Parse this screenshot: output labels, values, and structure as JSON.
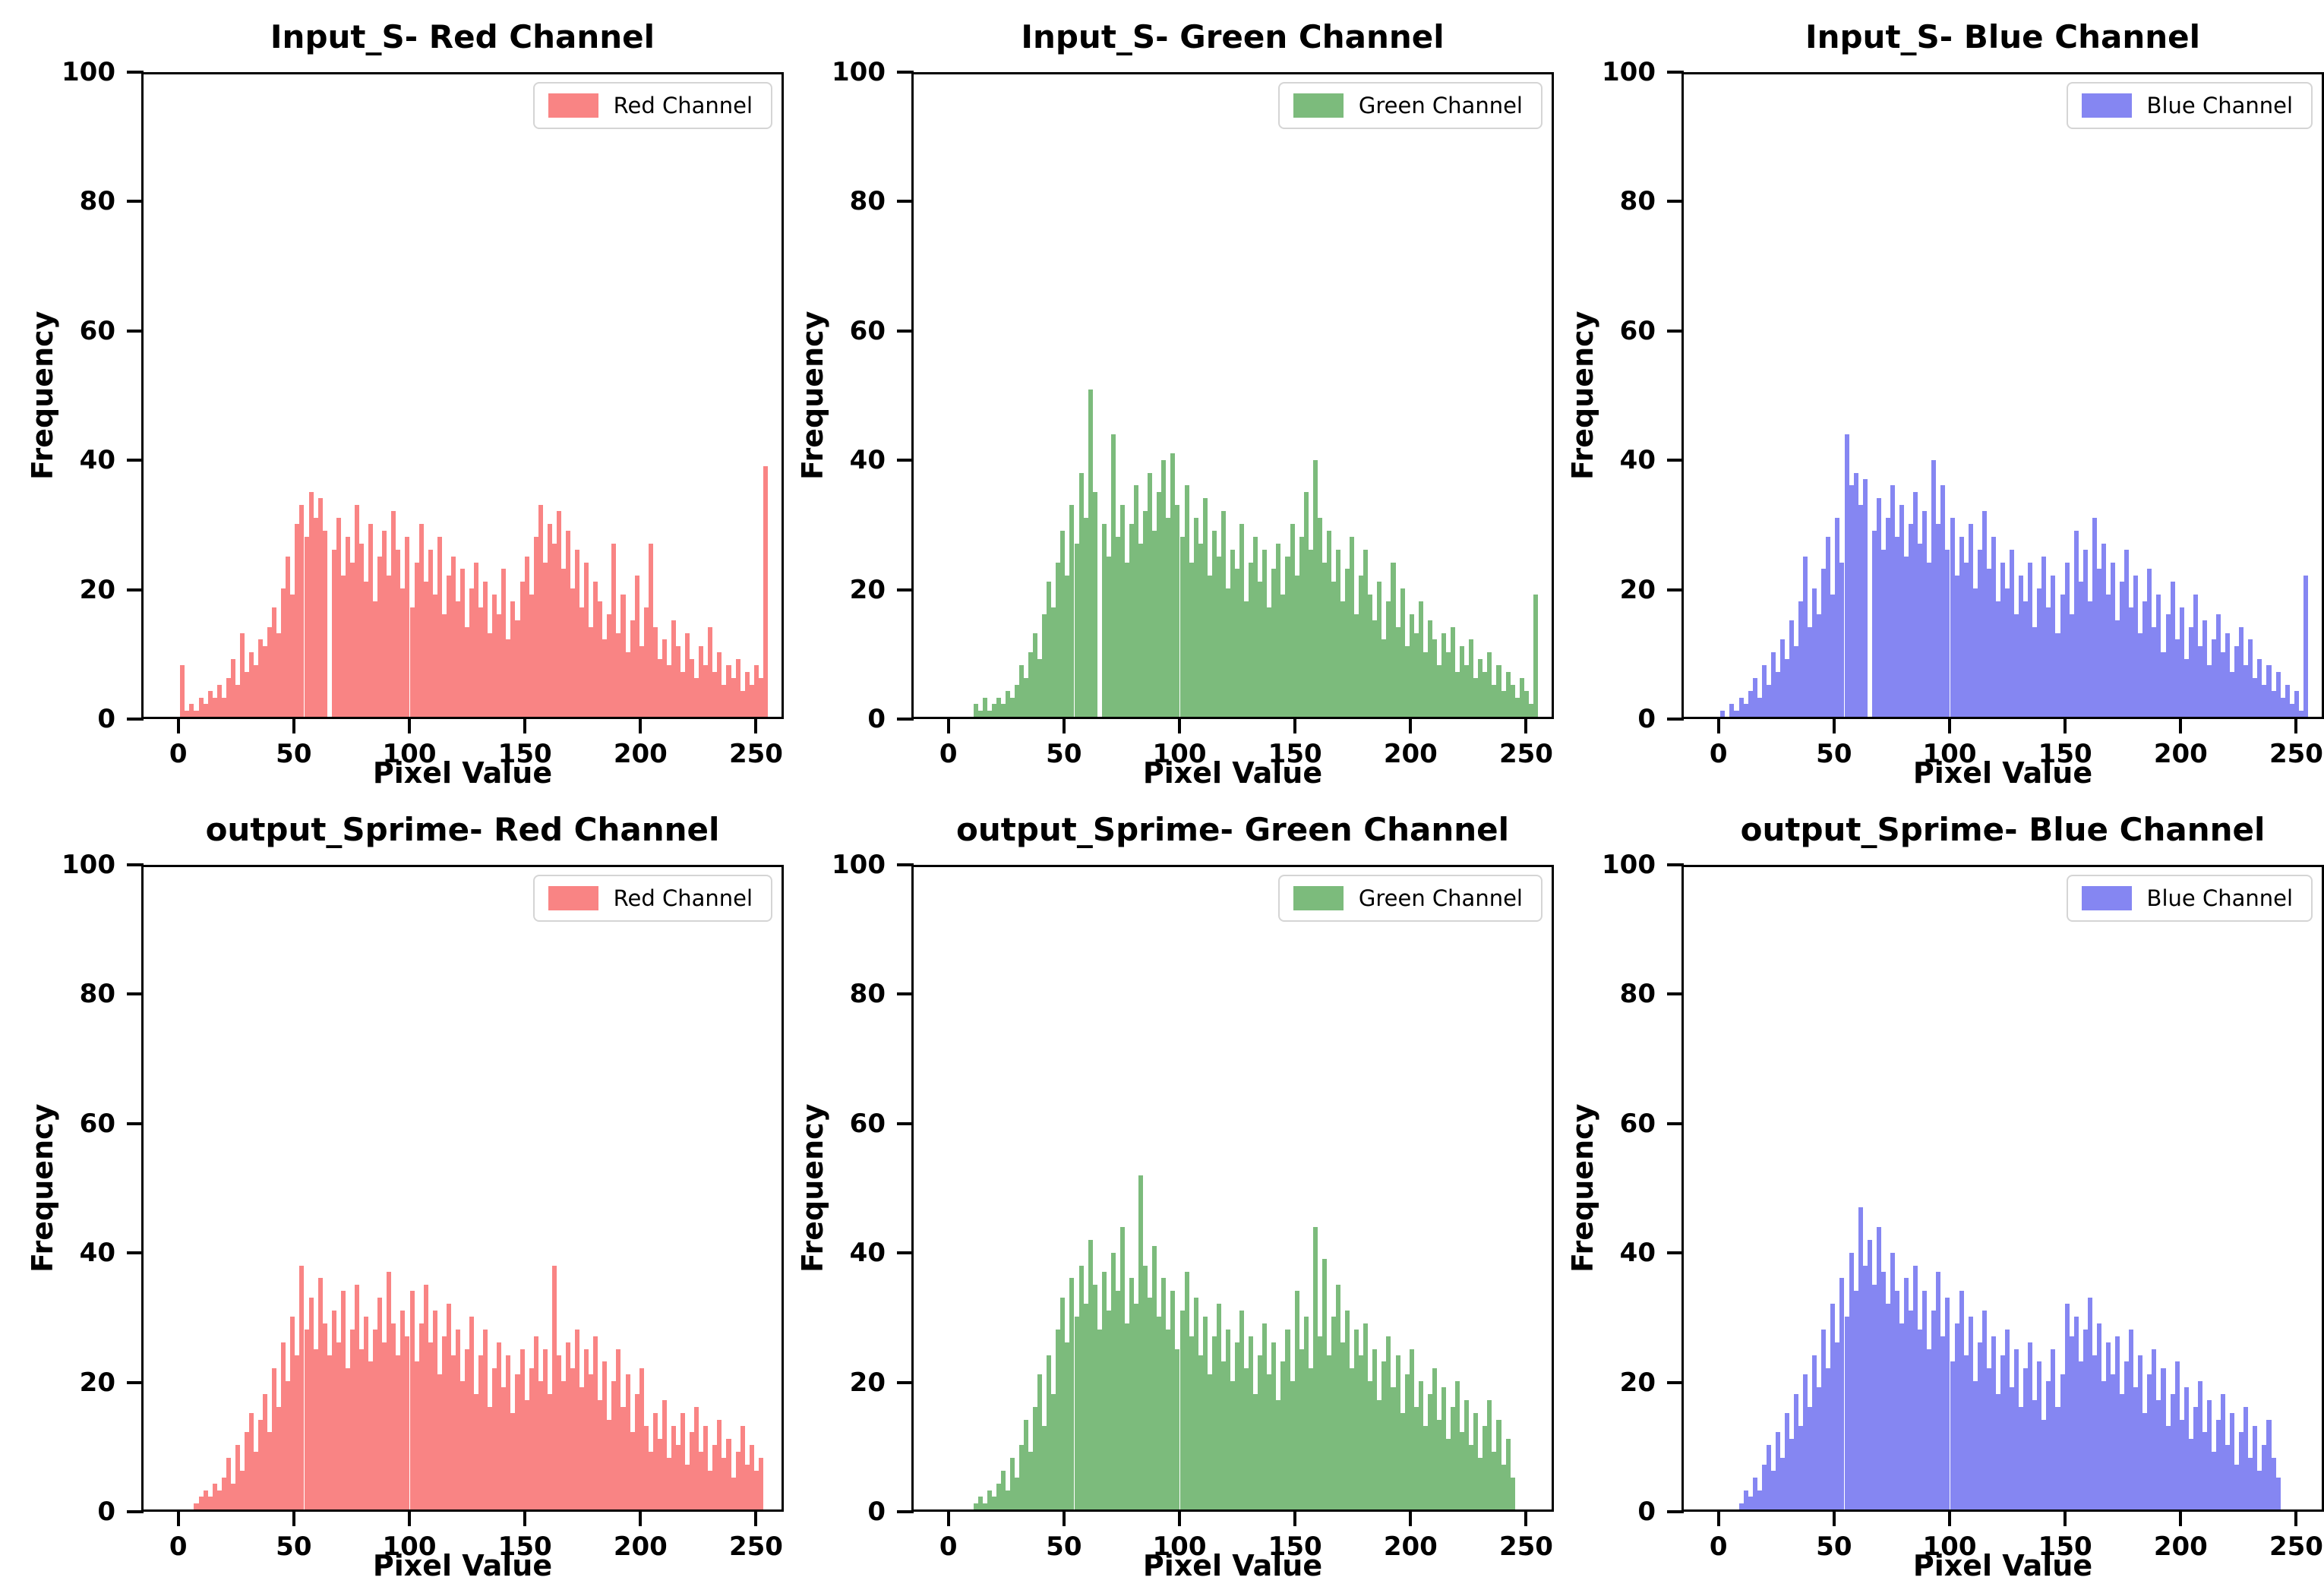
{
  "figure": {
    "background": "#ffffff"
  },
  "chart_data": [
    {
      "type": "bar",
      "title": "Input_S- Red Channel",
      "legend_label": "Red Channel",
      "color": "#F98484",
      "xlabel": "Pixel Value",
      "ylabel": "Frequency",
      "x_ticks": [
        0,
        50,
        100,
        150,
        200,
        250
      ],
      "y_ticks": [
        0,
        20,
        40,
        60,
        80,
        100
      ],
      "xlim": [
        -16,
        262
      ],
      "ylim": [
        0,
        100
      ],
      "legend_position": "upper right",
      "grid": false,
      "bin_start": 0,
      "bin_width": 2,
      "values": [
        8,
        1,
        2,
        1,
        3,
        2,
        4,
        3,
        5,
        3,
        6,
        9,
        5,
        13,
        7,
        10,
        8,
        12,
        11,
        14,
        17,
        13,
        20,
        25,
        19,
        30,
        33,
        28,
        35,
        31,
        34,
        29,
        0,
        26,
        31,
        22,
        28,
        24,
        33,
        27,
        21,
        30,
        18,
        25,
        29,
        22,
        32,
        26,
        20,
        28,
        17,
        24,
        30,
        21,
        26,
        19,
        28,
        16,
        22,
        25,
        18,
        23,
        14,
        20,
        24,
        17,
        21,
        13,
        19,
        16,
        23,
        12,
        18,
        15,
        21,
        25,
        19,
        28,
        33,
        24,
        30,
        27,
        32,
        23,
        29,
        20,
        26,
        17,
        24,
        14,
        21,
        18,
        12,
        16,
        27,
        13,
        19,
        10,
        15,
        22,
        11,
        17,
        27,
        14,
        9,
        12,
        8,
        15,
        11,
        7,
        13,
        9,
        6,
        11,
        8,
        14,
        7,
        10,
        5,
        8,
        6,
        9,
        4,
        7,
        5,
        8,
        6,
        39
      ]
    },
    {
      "type": "bar",
      "title": "Input_S- Green Channel",
      "legend_label": "Green Channel",
      "color": "#7CBB7C",
      "xlabel": "Pixel Value",
      "ylabel": "Frequency",
      "x_ticks": [
        0,
        50,
        100,
        150,
        200,
        250
      ],
      "y_ticks": [
        0,
        20,
        40,
        60,
        80,
        100
      ],
      "xlim": [
        -16,
        262
      ],
      "ylim": [
        0,
        100
      ],
      "legend_position": "upper right",
      "grid": false,
      "bin_start": 0,
      "bin_width": 2,
      "values": [
        0,
        0,
        0,
        0,
        0,
        2,
        1,
        3,
        1,
        2,
        3,
        2,
        4,
        3,
        5,
        8,
        6,
        10,
        13,
        9,
        16,
        21,
        17,
        24,
        29,
        22,
        33,
        27,
        38,
        31,
        51,
        35,
        0,
        30,
        25,
        44,
        28,
        33,
        24,
        30,
        36,
        27,
        32,
        38,
        29,
        35,
        40,
        31,
        41,
        33,
        28,
        36,
        24,
        31,
        27,
        34,
        22,
        29,
        25,
        32,
        20,
        26,
        23,
        30,
        18,
        24,
        28,
        21,
        26,
        17,
        23,
        27,
        19,
        25,
        30,
        22,
        28,
        35,
        26,
        40,
        31,
        24,
        29,
        21,
        26,
        18,
        23,
        28,
        16,
        22,
        26,
        19,
        15,
        21,
        12,
        18,
        24,
        14,
        20,
        11,
        16,
        13,
        18,
        10,
        15,
        12,
        8,
        13,
        10,
        14,
        7,
        11,
        8,
        12,
        6,
        9,
        7,
        10,
        5,
        8,
        4,
        7,
        5,
        3,
        6,
        4,
        2,
        19
      ]
    },
    {
      "type": "bar",
      "title": "Input_S- Blue Channel",
      "legend_label": "Blue Channel",
      "color": "#8586F2",
      "xlabel": "Pixel Value",
      "ylabel": "Frequency",
      "x_ticks": [
        0,
        50,
        100,
        150,
        200,
        250
      ],
      "y_ticks": [
        0,
        20,
        40,
        60,
        80,
        100
      ],
      "xlim": [
        -16,
        262
      ],
      "ylim": [
        0,
        100
      ],
      "legend_position": "upper right",
      "grid": false,
      "bin_start": 0,
      "bin_width": 2,
      "values": [
        1,
        0,
        2,
        1,
        3,
        2,
        4,
        6,
        3,
        8,
        5,
        10,
        7,
        12,
        9,
        15,
        11,
        18,
        25,
        14,
        20,
        16,
        23,
        28,
        19,
        31,
        24,
        44,
        36,
        38,
        33,
        37,
        0,
        29,
        34,
        26,
        31,
        36,
        28,
        33,
        25,
        30,
        35,
        27,
        32,
        24,
        40,
        30,
        36,
        26,
        31,
        22,
        28,
        24,
        30,
        20,
        26,
        32,
        23,
        28,
        18,
        24,
        20,
        26,
        16,
        22,
        18,
        24,
        14,
        20,
        25,
        17,
        22,
        13,
        19,
        24,
        16,
        29,
        21,
        26,
        18,
        31,
        23,
        27,
        19,
        24,
        15,
        21,
        26,
        17,
        22,
        13,
        18,
        23,
        14,
        19,
        10,
        16,
        21,
        12,
        17,
        9,
        14,
        19,
        11,
        15,
        8,
        12,
        16,
        10,
        13,
        7,
        11,
        14,
        8,
        12,
        6,
        9,
        5,
        8,
        4,
        7,
        3,
        5,
        2,
        4,
        1,
        22
      ]
    },
    {
      "type": "bar",
      "title": "output_Sprime- Red Channel",
      "legend_label": "Red Channel",
      "color": "#F98484",
      "xlabel": "Pixel Value",
      "ylabel": "Frequency",
      "x_ticks": [
        0,
        50,
        100,
        150,
        200,
        250
      ],
      "y_ticks": [
        0,
        20,
        40,
        60,
        80,
        100
      ],
      "xlim": [
        -16,
        262
      ],
      "ylim": [
        0,
        100
      ],
      "legend_position": "upper right",
      "grid": false,
      "bin_start": 0,
      "bin_width": 2,
      "values": [
        0,
        0,
        0,
        1,
        2,
        3,
        2,
        4,
        3,
        5,
        8,
        4,
        10,
        6,
        12,
        15,
        9,
        14,
        18,
        12,
        22,
        16,
        26,
        20,
        30,
        24,
        38,
        28,
        33,
        25,
        36,
        29,
        24,
        31,
        26,
        34,
        22,
        28,
        35,
        25,
        30,
        23,
        28,
        33,
        26,
        37,
        29,
        24,
        31,
        27,
        34,
        23,
        29,
        35,
        26,
        31,
        21,
        27,
        32,
        24,
        28,
        20,
        25,
        30,
        18,
        24,
        28,
        16,
        22,
        26,
        19,
        24,
        15,
        21,
        25,
        17,
        22,
        27,
        20,
        25,
        18,
        38,
        24,
        20,
        26,
        22,
        28,
        19,
        25,
        21,
        27,
        17,
        23,
        14,
        20,
        25,
        16,
        21,
        12,
        18,
        22,
        13,
        9,
        15,
        11,
        17,
        8,
        13,
        10,
        15,
        7,
        12,
        16,
        9,
        13,
        6,
        10,
        14,
        8,
        11,
        5,
        9,
        13,
        7,
        10,
        6,
        8,
        0
      ]
    },
    {
      "type": "bar",
      "title": "output_Sprime- Green Channel",
      "legend_label": "Green Channel",
      "color": "#7CBB7C",
      "xlabel": "Pixel Value",
      "ylabel": "Frequency",
      "x_ticks": [
        0,
        50,
        100,
        150,
        200,
        250
      ],
      "y_ticks": [
        0,
        20,
        40,
        60,
        80,
        100
      ],
      "xlim": [
        -16,
        262
      ],
      "ylim": [
        0,
        100
      ],
      "legend_position": "upper right",
      "grid": false,
      "bin_start": 0,
      "bin_width": 2,
      "values": [
        0,
        0,
        0,
        0,
        0,
        1,
        2,
        1,
        3,
        2,
        4,
        6,
        3,
        8,
        5,
        10,
        14,
        9,
        16,
        21,
        13,
        24,
        18,
        28,
        33,
        26,
        36,
        30,
        38,
        32,
        42,
        35,
        28,
        37,
        31,
        40,
        34,
        44,
        29,
        36,
        32,
        52,
        38,
        33,
        41,
        30,
        36,
        28,
        34,
        25,
        31,
        37,
        27,
        33,
        24,
        30,
        21,
        27,
        32,
        23,
        28,
        20,
        26,
        31,
        22,
        27,
        18,
        24,
        29,
        21,
        26,
        17,
        23,
        28,
        20,
        34,
        25,
        30,
        22,
        44,
        27,
        39,
        24,
        30,
        35,
        26,
        31,
        22,
        28,
        24,
        29,
        20,
        25,
        17,
        23,
        27,
        19,
        24,
        15,
        21,
        25,
        16,
        20,
        13,
        18,
        22,
        14,
        19,
        11,
        16,
        20,
        12,
        17,
        10,
        15,
        8,
        13,
        17,
        9,
        14,
        7,
        11,
        5,
        0,
        0,
        0,
        0,
        0
      ]
    },
    {
      "type": "bar",
      "title": "output_Sprime- Blue Channel",
      "legend_label": "Blue Channel",
      "color": "#8586F2",
      "xlabel": "Pixel Value",
      "ylabel": "Frequency",
      "x_ticks": [
        0,
        50,
        100,
        150,
        200,
        250
      ],
      "y_ticks": [
        0,
        20,
        40,
        60,
        80,
        100
      ],
      "xlim": [
        -16,
        262
      ],
      "ylim": [
        0,
        100
      ],
      "legend_position": "upper right",
      "grid": false,
      "bin_start": 0,
      "bin_width": 2,
      "values": [
        0,
        0,
        0,
        0,
        1,
        3,
        2,
        5,
        3,
        7,
        10,
        6,
        12,
        8,
        15,
        11,
        18,
        13,
        21,
        16,
        24,
        19,
        28,
        22,
        32,
        26,
        36,
        30,
        40,
        34,
        47,
        38,
        42,
        35,
        44,
        37,
        32,
        40,
        34,
        29,
        36,
        31,
        38,
        28,
        34,
        25,
        31,
        37,
        27,
        33,
        23,
        29,
        34,
        24,
        30,
        20,
        26,
        31,
        22,
        27,
        18,
        24,
        28,
        19,
        25,
        16,
        22,
        26,
        17,
        23,
        14,
        20,
        25,
        16,
        21,
        32,
        27,
        30,
        23,
        28,
        33,
        24,
        29,
        20,
        26,
        21,
        27,
        18,
        23,
        28,
        19,
        24,
        15,
        21,
        25,
        17,
        22,
        13,
        18,
        23,
        14,
        19,
        11,
        16,
        20,
        12,
        17,
        9,
        14,
        18,
        10,
        15,
        7,
        12,
        16,
        8,
        13,
        6,
        10,
        14,
        8,
        5,
        0,
        0,
        0,
        0,
        0,
        0
      ]
    }
  ]
}
